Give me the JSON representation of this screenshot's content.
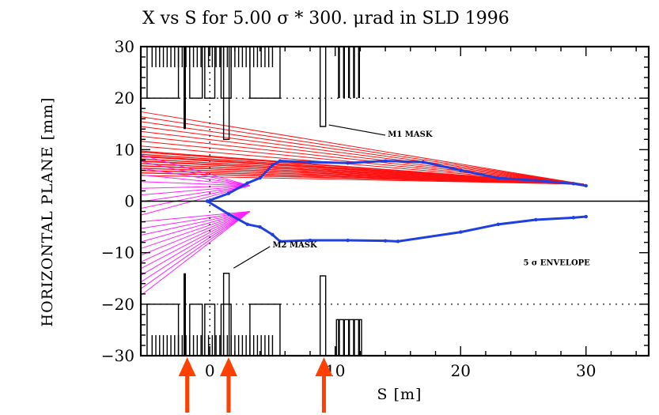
{
  "chart_data": {
    "type": "line",
    "title": "X vs S for  5.00 σ * 300. μrad in SLD 1996",
    "xlabel": "S [m]",
    "ylabel": "HORIZONTAL PLANE [mm]",
    "xlim": [
      -5.5,
      35
    ],
    "ylim": [
      -30,
      30
    ],
    "xticks": [
      0,
      10,
      20,
      30
    ],
    "xtick_labels": [
      "0",
      "10",
      "20",
      "30"
    ],
    "yticks": [
      30,
      20,
      10,
      0,
      -10,
      -20,
      -30
    ],
    "ytick_labels": [
      "30",
      "20",
      "10",
      "0",
      "−10",
      "−20",
      "−30"
    ],
    "grid": "dotted reference lines at y = ±20 and x = 0",
    "series": [
      {
        "color": "#1f3fe0",
        "x": [
          -0.2,
          1.5,
          3,
          4,
          5,
          5.6,
          8,
          11,
          14,
          17,
          20,
          23,
          26,
          29,
          30
        ],
        "values": [
          0,
          1.5,
          3.5,
          4.5,
          7,
          7.8,
          7.6,
          7.4,
          7.8,
          7.6,
          6,
          4.5,
          4,
          3.4,
          3
        ]
      },
      {
        "color": "#1f3fe0",
        "x": [
          -0.2,
          1.5,
          3,
          4,
          5,
          5.6,
          8,
          11,
          14,
          15,
          20,
          23,
          26,
          29,
          30
        ],
        "values": [
          0,
          -2.5,
          -4.5,
          -5,
          -6.5,
          -7.8,
          -7.6,
          -7.6,
          -7.7,
          -7.8,
          -6,
          -4.5,
          -3.6,
          -3.2,
          -3
        ]
      }
    ],
    "annotations": [
      {
        "text": "M1 MASK",
        "x": 14.2,
        "y": 12.5
      },
      {
        "text": "M2 MASK",
        "x": 5,
        "y": -9
      },
      {
        "text": "5 σ ENVELOPE",
        "x": 25,
        "y": -12.4
      }
    ],
    "colors": {
      "envelope": "#1f3fe0",
      "rays_red": "#ff1010",
      "rays_magenta": "#ff22ff",
      "arrows": "#ff4000",
      "frame": "#000000"
    }
  }
}
